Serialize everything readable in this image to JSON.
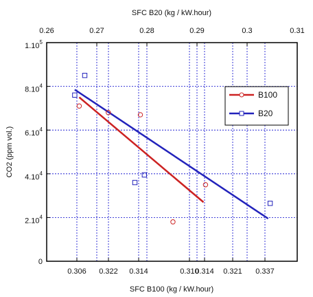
{
  "chart_data": {
    "type": "scatter",
    "title": "",
    "xlabel_bottom": "SFC B100 (kg / kW.hour)",
    "xlabel_top": "SFC B20 (kg / kW.hour)",
    "ylabel": "CO2 (ppm vol.)",
    "ylim": [
      0,
      100000
    ],
    "y_ticks": [
      {
        "value": 0,
        "label": "0"
      },
      {
        "value": 20000,
        "label": "2.10",
        "exp": "4"
      },
      {
        "value": 40000,
        "label": "4.10",
        "exp": "4"
      },
      {
        "value": 60000,
        "label": "6.10",
        "exp": "4"
      },
      {
        "value": 80000,
        "label": "8.10",
        "exp": "4"
      },
      {
        "value": 100000,
        "label": "1.10",
        "exp": "5"
      }
    ],
    "top_xlim": [
      0.26,
      0.31
    ],
    "top_x_ticks": [
      "0.26",
      "0.27",
      "0.28",
      "0.29",
      "0.3",
      "0.31"
    ],
    "bottom_x_ticks": [
      "0.306",
      "0.322",
      "0.314",
      "0.310",
      "0.314",
      "0.321",
      "0.337"
    ],
    "grid": true,
    "legend_position": "top-right",
    "series": [
      {
        "name": "B100",
        "color": "#cc2222",
        "marker": "circle",
        "points": [
          {
            "x": 0.2665,
            "y": 71000
          },
          {
            "x": 0.2723,
            "y": 68000
          },
          {
            "x": 0.2787,
            "y": 67000
          },
          {
            "x": 0.2852,
            "y": 18000
          },
          {
            "x": 0.2917,
            "y": 35000
          }
        ],
        "fit": [
          {
            "x": 0.2665,
            "y": 75000
          },
          {
            "x": 0.2913,
            "y": 27000
          }
        ]
      },
      {
        "name": "B20",
        "color": "#2222bb",
        "marker": "square",
        "points": [
          {
            "x": 0.2656,
            "y": 76000
          },
          {
            "x": 0.2676,
            "y": 85000
          },
          {
            "x": 0.2776,
            "y": 36000
          },
          {
            "x": 0.2795,
            "y": 39500
          },
          {
            "x": 0.3046,
            "y": 26500
          }
        ],
        "fit": [
          {
            "x": 0.2656,
            "y": 78500
          },
          {
            "x": 0.3042,
            "y": 19500
          }
        ]
      }
    ]
  }
}
